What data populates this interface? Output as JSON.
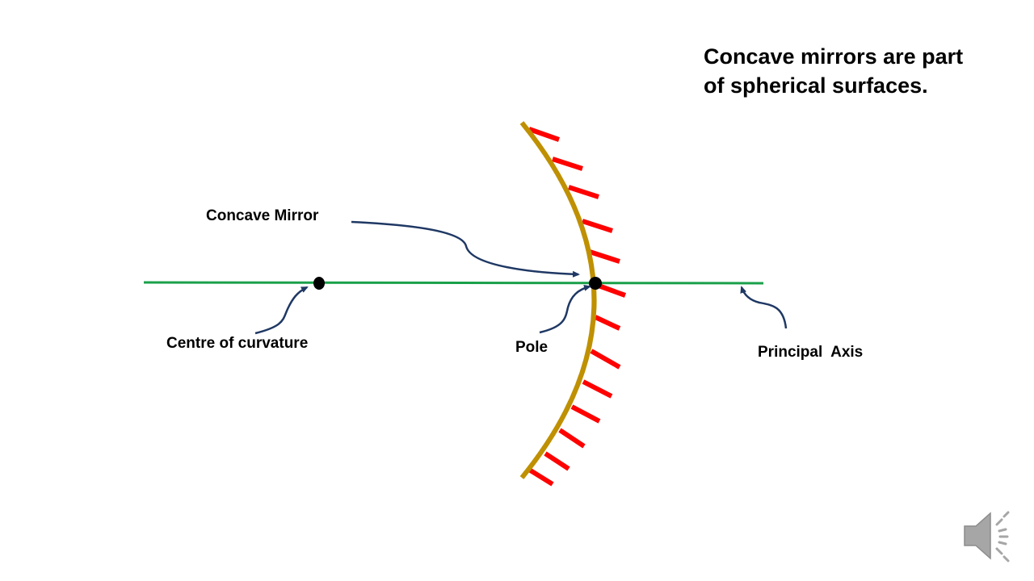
{
  "title": {
    "line1": "Concave mirrors are part",
    "line2": "of spherical surfaces."
  },
  "labels": {
    "concave_mirror": "Concave Mirror",
    "centre_of_curvature": "Centre of curvature",
    "pole": "Pole",
    "principal_axis": "Principal  Axis"
  },
  "colors": {
    "axis": "#1aa04a",
    "mirror": "#bf9000",
    "hatch": "#ff0000",
    "arrow": "#1f3864",
    "point": "#000000",
    "speaker": "#a6a6a6"
  },
  "icons": {
    "speaker": "speaker-icon"
  }
}
